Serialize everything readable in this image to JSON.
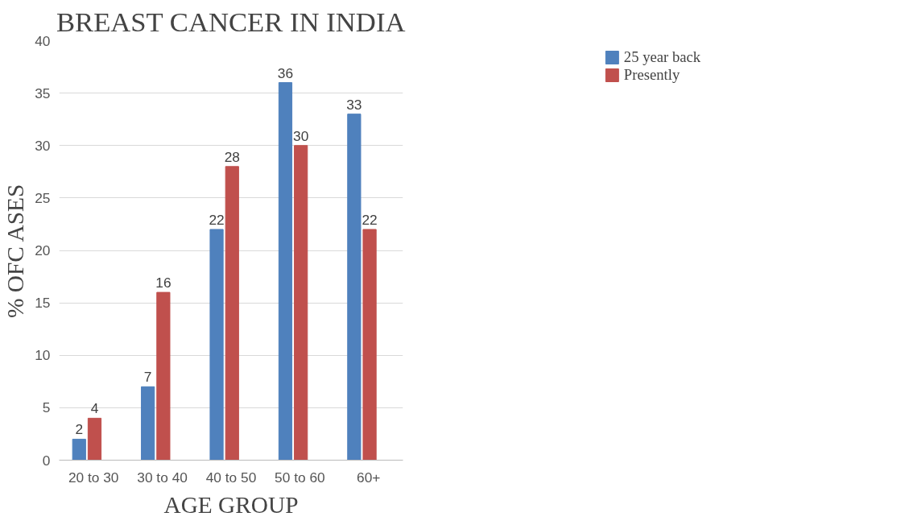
{
  "chart_data": {
    "type": "bar",
    "title": "BREAST CANCER IN INDIA",
    "xlabel": "AGE GROUP",
    "ylabel": "% OFC ASES",
    "categories": [
      "20 to 30",
      "30 to 40",
      "40 to 50",
      "50 to 60",
      "60+"
    ],
    "series": [
      {
        "name": "25 year back",
        "color": "#4f81bd",
        "values": [
          2,
          7,
          22,
          36,
          33
        ]
      },
      {
        "name": "Presently",
        "color": "#c0504d",
        "values": [
          4,
          16,
          28,
          30,
          22
        ]
      }
    ],
    "ylim": [
      0,
      40
    ],
    "yticks": [
      0,
      5,
      10,
      15,
      20,
      25,
      30,
      35,
      40
    ],
    "grid": "y",
    "legend": "top right",
    "data_labels": true
  }
}
